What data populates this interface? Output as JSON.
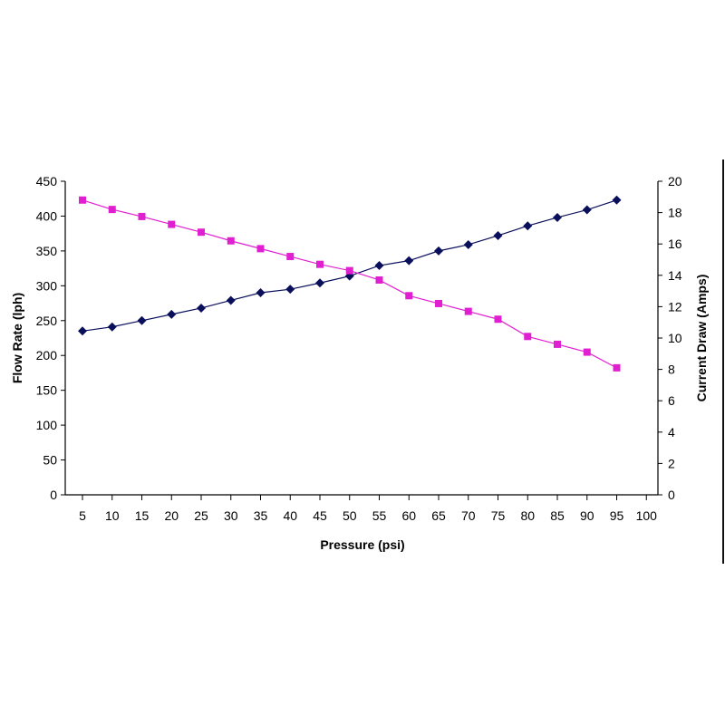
{
  "chart_data": {
    "type": "line",
    "title": "",
    "xlabel": "Pressure (psi)",
    "ylabel": "Flow Rate (lph)",
    "y2label": "Current Draw (Amps)",
    "x_ticks": [
      "5",
      "10",
      "15",
      "20",
      "25",
      "30",
      "35",
      "40",
      "45",
      "50",
      "55",
      "60",
      "65",
      "70",
      "75",
      "80",
      "85",
      "90",
      "95",
      "100"
    ],
    "y_ticks": [
      "0",
      "50",
      "100",
      "150",
      "200",
      "250",
      "300",
      "350",
      "400",
      "450"
    ],
    "y2_ticks": [
      "0",
      "2",
      "4",
      "6",
      "8",
      "10",
      "12",
      "14",
      "16",
      "18",
      "20"
    ],
    "xlim": [
      5,
      100
    ],
    "ylim": [
      0,
      450
    ],
    "y2lim": [
      0,
      20
    ],
    "grid": false,
    "legend": "none",
    "series": [
      {
        "axis": "left",
        "color": "#0a0f5c",
        "marker": "diamond",
        "x": [
          5,
          10,
          15,
          20,
          25,
          30,
          35,
          40,
          45,
          50,
          55,
          60,
          65,
          70,
          75,
          80,
          85,
          90,
          95
        ],
        "values": [
          235,
          241,
          250,
          259,
          268,
          279,
          290,
          295,
          304,
          314,
          329,
          336,
          350,
          359,
          372,
          386,
          398,
          409,
          423
        ]
      },
      {
        "axis": "right",
        "color": "#e020d0",
        "marker": "square",
        "x": [
          5,
          10,
          15,
          20,
          25,
          30,
          35,
          40,
          45,
          50,
          55,
          60,
          65,
          70,
          75,
          80,
          85,
          90,
          95
        ],
        "values": [
          18.8,
          18.2,
          17.75,
          17.25,
          16.75,
          16.2,
          15.7,
          15.2,
          14.7,
          14.3,
          13.7,
          12.7,
          12.2,
          11.7,
          11.2,
          10.1,
          9.6,
          9.1,
          8.1
        ]
      }
    ]
  }
}
